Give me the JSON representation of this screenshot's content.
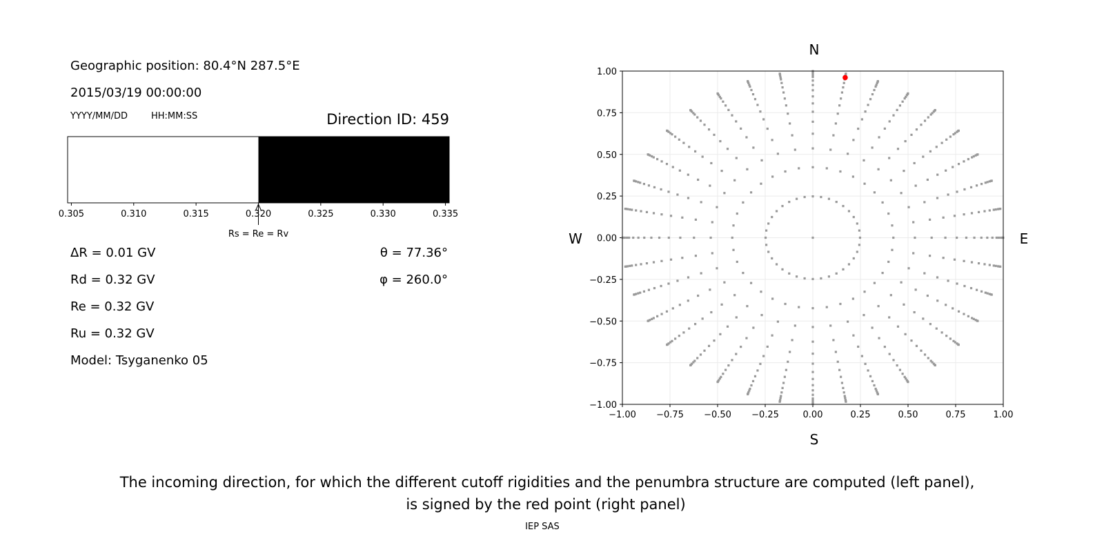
{
  "left_panel": {
    "geo_position": "Geographic position: 80.4°N 287.5°E",
    "datetime": "2015/03/19 00:00:00",
    "date_format": "YYYY/MM/DD",
    "time_format": "HH:MM:SS",
    "direction_id": "Direction ID: 459",
    "delta_r": "ΔR = 0.01 GV",
    "rd": "Rd = 0.32 GV",
    "re": "Re = 0.32 GV",
    "ru": "Ru = 0.32 GV",
    "model": "Model: Tsyganenko 05",
    "theta": "θ = 77.36°",
    "phi": "φ = 260.0°"
  },
  "caption": {
    "line1": "The incoming direction, for which the different cutoff rigidities and the penumbra structure are computed (left panel),",
    "line2": "is signed by the red point (right panel)",
    "credit": "IEP SAS"
  },
  "chart_data": [
    {
      "type": "bar",
      "description_role": "penumbra",
      "xlim": [
        0.3047,
        0.3353
      ],
      "xticks": [
        "0.305",
        "0.310",
        "0.315",
        "0.320",
        "0.325",
        "0.330",
        "0.335"
      ],
      "segments": [
        {
          "from": 0.3047,
          "to": 0.32,
          "color": "#ffffff"
        },
        {
          "from": 0.32,
          "to": 0.3353,
          "color": "#000000"
        }
      ],
      "annotation": {
        "text": "Rs = Re = Rv",
        "x": 0.32
      }
    },
    {
      "type": "scatter",
      "xlim": [
        -1.0,
        1.0
      ],
      "ylim": [
        -1.0,
        1.0
      ],
      "grid": true,
      "xticks": [
        "−1.00",
        "−0.75",
        "−0.50",
        "−0.25",
        "0.00",
        "0.25",
        "0.50",
        "0.75",
        "1.00"
      ],
      "yticks": [
        "1.00",
        "0.75",
        "0.50",
        "0.25",
        "0.00",
        "−0.25",
        "−0.50",
        "−0.75",
        "−1.00"
      ],
      "compass": {
        "n": "N",
        "s": "S",
        "w": "W",
        "e": "E"
      },
      "grid_points": {
        "azimuths_deg": [
          0,
          10,
          20,
          30,
          40,
          50,
          60,
          70,
          80,
          90,
          100,
          110,
          120,
          130,
          140,
          150,
          160,
          170,
          180,
          190,
          200,
          210,
          220,
          230,
          240,
          250,
          260,
          270,
          280,
          290,
          300,
          310,
          320,
          330,
          340,
          350
        ],
        "radii": [
          0.248,
          0.423,
          0.536,
          0.624,
          0.696,
          0.756,
          0.806,
          0.848,
          0.885,
          0.916,
          0.943,
          0.965,
          0.976,
          0.988,
          0.996,
          0.9995
        ],
        "center_point": [
          0,
          0
        ],
        "color": "#999999"
      },
      "highlight_point": {
        "x": 0.17,
        "y": 0.961,
        "color": "#ff0000"
      }
    }
  ]
}
